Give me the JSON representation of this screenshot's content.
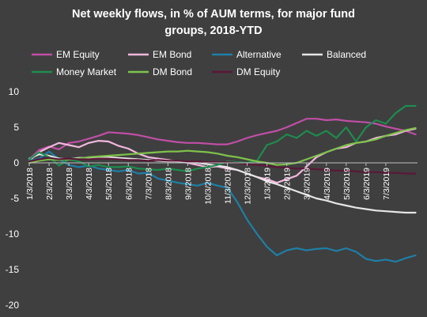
{
  "chart_data": {
    "type": "line",
    "title_lines": [
      "Net weekly flows, in % of AUM terms, for major fund",
      "groups, 2018-YTD"
    ],
    "xlabel": "",
    "ylabel": "",
    "ylim": [
      -20,
      10
    ],
    "yticks": [
      10,
      5,
      0,
      -5,
      -10,
      -15,
      -20
    ],
    "grid": false,
    "legend_position": "top",
    "x_tick_labels": [
      "1/3/2018",
      "2/3/2018",
      "3/3/2018",
      "4/3/2018",
      "5/3/2018",
      "6/3/2018",
      "7/3/2018",
      "8/3/2018",
      "9/3/2018",
      "10/3/2018",
      "11/3/2018",
      "12/3/2018",
      "1/3/2019",
      "2/3/2019",
      "3/3/2019",
      "4/3/2019",
      "5/3/2019",
      "6/3/2019",
      "7/3/2019"
    ],
    "x_tick_months": [
      0,
      1,
      2,
      3,
      4,
      5,
      6,
      7,
      8,
      9,
      10,
      11,
      12,
      13,
      14,
      15,
      16,
      17,
      18
    ],
    "x_range_months": [
      0,
      19.6
    ],
    "series": [
      {
        "name": "EM Equity",
        "color": "#c04fa6",
        "x": [
          0,
          0.5,
          1,
          1.5,
          2,
          2.5,
          3,
          3.5,
          4,
          4.5,
          5,
          5.5,
          6,
          6.5,
          7,
          7.5,
          8,
          8.5,
          9,
          9.5,
          10,
          10.5,
          11,
          11.5,
          12,
          12.5,
          13,
          13.5,
          14,
          14.5,
          15,
          15.5,
          16,
          16.5,
          17,
          17.5,
          18,
          18.5,
          19,
          19.5
        ],
        "y": [
          0.5,
          1.8,
          2.3,
          1.9,
          2.8,
          3.0,
          3.4,
          3.8,
          4.3,
          4.2,
          4.1,
          3.9,
          3.6,
          3.3,
          3.1,
          2.9,
          2.8,
          2.8,
          2.7,
          2.6,
          2.6,
          3.0,
          3.5,
          3.9,
          4.2,
          4.5,
          5.0,
          5.6,
          6.2,
          6.2,
          6.0,
          6.1,
          5.9,
          5.8,
          5.7,
          5.5,
          5.1,
          4.8,
          4.5,
          4.0
        ]
      },
      {
        "name": "EM Bond",
        "color": "#f2b8de",
        "x": [
          0,
          0.5,
          1,
          1.5,
          2,
          2.5,
          3,
          3.5,
          4,
          4.5,
          5,
          5.5,
          6,
          6.5,
          7,
          7.5,
          8,
          8.5,
          9,
          9.5,
          10,
          10.5,
          11,
          11.5,
          12,
          12.5,
          13,
          13.5,
          14,
          14.5,
          15,
          15.5,
          16,
          16.5,
          17,
          17.5,
          18,
          18.5,
          19,
          19.5
        ],
        "y": [
          0.3,
          1.5,
          2.2,
          2.8,
          2.5,
          2.2,
          2.8,
          3.1,
          3.0,
          2.4,
          2.0,
          1.3,
          0.8,
          0.6,
          0.4,
          0.2,
          0.0,
          -0.3,
          -0.6,
          -0.5,
          -0.8,
          -1.0,
          -1.5,
          -2.0,
          -2.3,
          -2.8,
          -2.3,
          -1.8,
          -0.5,
          0.8,
          1.5,
          2.0,
          2.2,
          2.8,
          3.0,
          3.5,
          3.8,
          4.0,
          4.5,
          4.8
        ]
      },
      {
        "name": "Alternative",
        "color": "#1f7fa6",
        "x": [
          0,
          0.5,
          1,
          1.5,
          2,
          2.5,
          3,
          3.5,
          4,
          4.5,
          5,
          5.5,
          6,
          6.5,
          7,
          7.5,
          8,
          8.5,
          9,
          9.5,
          10,
          10.5,
          11,
          11.5,
          12,
          12.5,
          13,
          13.5,
          14,
          14.5,
          15,
          15.5,
          16,
          16.5,
          17,
          17.5,
          18,
          18.5,
          19,
          19.5
        ],
        "y": [
          0.3,
          0.6,
          1.6,
          0.5,
          -0.3,
          -0.6,
          -0.4,
          -0.8,
          -1.0,
          -1.2,
          -1.0,
          -1.5,
          -1.4,
          -2.2,
          -2.5,
          -2.8,
          -3.0,
          -3.2,
          -2.8,
          -3.2,
          -3.5,
          -5.5,
          -8.0,
          -10.0,
          -11.8,
          -13.0,
          -12.3,
          -12.0,
          -12.3,
          -12.1,
          -12.0,
          -12.4,
          -12.0,
          -12.5,
          -13.5,
          -13.8,
          -13.6,
          -13.9,
          -13.4,
          -13.0
        ]
      },
      {
        "name": "Balanced",
        "color": "#e6e6e6",
        "x": [
          0,
          0.5,
          1,
          1.5,
          2,
          2.5,
          3,
          3.5,
          4,
          4.5,
          5,
          5.5,
          6,
          6.5,
          7,
          7.5,
          8,
          8.5,
          9,
          9.5,
          10,
          10.5,
          11,
          11.5,
          12,
          12.5,
          13,
          13.5,
          14,
          14.5,
          15,
          15.5,
          16,
          16.5,
          17,
          17.5,
          18,
          18.5,
          19,
          19.5
        ],
        "y": [
          0.6,
          1.2,
          1.0,
          0.6,
          0.5,
          0.7,
          0.7,
          0.8,
          0.8,
          0.7,
          0.6,
          0.5,
          0.4,
          0.3,
          0.2,
          0.2,
          0.1,
          0.0,
          -0.2,
          -0.4,
          -0.6,
          -1.0,
          -1.5,
          -2.0,
          -2.6,
          -3.0,
          -3.5,
          -4.0,
          -4.5,
          -5.0,
          -5.3,
          -5.7,
          -6.0,
          -6.3,
          -6.5,
          -6.7,
          -6.8,
          -6.9,
          -7.0,
          -7.0
        ]
      },
      {
        "name": "Money Market",
        "color": "#1e8c4e",
        "x": [
          0,
          0.5,
          1,
          1.5,
          2,
          2.5,
          3,
          3.5,
          4,
          4.5,
          5,
          5.5,
          6,
          6.5,
          7,
          7.5,
          8,
          8.5,
          9,
          9.5,
          10,
          10.5,
          11,
          11.5,
          12,
          12.5,
          13,
          13.5,
          14,
          14.5,
          15,
          15.5,
          16,
          16.5,
          17,
          17.5,
          18,
          18.5,
          19,
          19.5
        ],
        "y": [
          0.5,
          1.5,
          0.8,
          -0.4,
          0.5,
          0.2,
          -0.5,
          -0.3,
          -0.6,
          -0.6,
          -0.5,
          -0.8,
          -0.9,
          -1.0,
          -0.8,
          -1.0,
          -1.2,
          -0.8,
          -0.6,
          -0.3,
          0.2,
          0.1,
          0.0,
          0.3,
          2.5,
          3.0,
          4.0,
          3.5,
          4.5,
          3.8,
          4.5,
          3.5,
          5.0,
          3.0,
          5.0,
          6.0,
          5.5,
          7.0,
          8.0,
          8.0
        ]
      },
      {
        "name": "DM Bond",
        "color": "#7ec24b",
        "x": [
          0,
          0.5,
          1,
          1.5,
          2,
          2.5,
          3,
          3.5,
          4,
          4.5,
          5,
          5.5,
          6,
          6.5,
          7,
          7.5,
          8,
          8.5,
          9,
          9.5,
          10,
          10.5,
          11,
          11.5,
          12,
          12.5,
          13,
          13.5,
          14,
          14.5,
          15,
          15.5,
          16,
          16.5,
          17,
          17.5,
          18,
          18.5,
          19,
          19.5
        ],
        "y": [
          0.0,
          0.3,
          0.5,
          0.4,
          0.5,
          0.6,
          0.8,
          0.9,
          1.0,
          1.1,
          1.2,
          1.3,
          1.4,
          1.5,
          1.6,
          1.6,
          1.7,
          1.6,
          1.5,
          1.3,
          1.0,
          0.8,
          0.5,
          0.2,
          0.0,
          -0.3,
          -0.2,
          0.0,
          0.5,
          1.0,
          1.5,
          2.0,
          2.5,
          2.8,
          3.0,
          3.3,
          3.8,
          4.2,
          4.6,
          4.9
        ]
      },
      {
        "name": "DM Equity",
        "color": "#5a1838",
        "x": [
          0,
          0.5,
          1,
          1.5,
          2,
          2.5,
          3,
          3.5,
          4,
          4.5,
          5,
          5.5,
          6,
          6.5,
          7,
          7.5,
          8,
          8.5,
          9,
          9.5,
          10,
          10.5,
          11,
          11.5,
          12,
          12.5,
          13,
          13.5,
          14,
          14.5,
          15,
          15.5,
          16,
          16.5,
          17,
          17.5,
          18,
          18.5,
          19,
          19.5
        ],
        "y": [
          0.2,
          0.5,
          0.7,
          0.5,
          0.6,
          0.5,
          0.5,
          0.6,
          0.6,
          0.5,
          0.4,
          0.4,
          0.3,
          0.4,
          0.3,
          0.3,
          0.2,
          0.2,
          0.1,
          0.1,
          0.1,
          0.0,
          -0.2,
          -0.3,
          -0.4,
          -0.6,
          -0.7,
          -0.8,
          -0.8,
          -0.9,
          -1.0,
          -1.1,
          -1.1,
          -1.2,
          -1.3,
          -1.3,
          -1.4,
          -1.4,
          -1.5,
          -1.5
        ]
      }
    ]
  }
}
